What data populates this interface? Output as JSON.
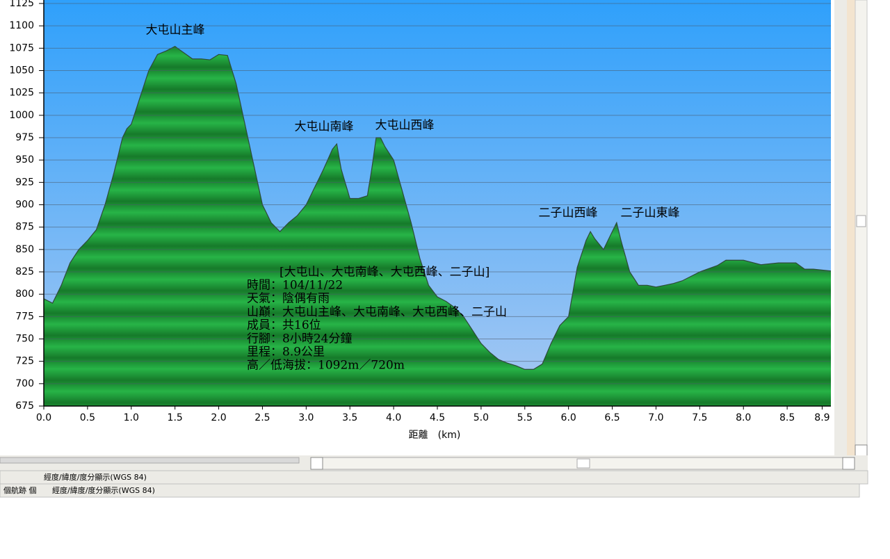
{
  "chart_data": {
    "type": "area",
    "x_label": "距離　(km)",
    "x": [
      0.0,
      0.1,
      0.2,
      0.3,
      0.4,
      0.5,
      0.6,
      0.7,
      0.8,
      0.9,
      0.95,
      1.0,
      1.1,
      1.2,
      1.3,
      1.4,
      1.5,
      1.6,
      1.7,
      1.8,
      1.9,
      2.0,
      2.1,
      2.2,
      2.3,
      2.4,
      2.5,
      2.6,
      2.7,
      2.8,
      2.9,
      3.0,
      3.1,
      3.2,
      3.3,
      3.35,
      3.4,
      3.5,
      3.6,
      3.7,
      3.75,
      3.8,
      3.85,
      3.9,
      4.0,
      4.1,
      4.2,
      4.3,
      4.4,
      4.5,
      4.6,
      4.7,
      4.8,
      4.9,
      5.0,
      5.1,
      5.2,
      5.3,
      5.4,
      5.5,
      5.6,
      5.7,
      5.8,
      5.9,
      6.0,
      6.1,
      6.2,
      6.25,
      6.3,
      6.4,
      6.5,
      6.55,
      6.6,
      6.7,
      6.8,
      6.9,
      7.0,
      7.1,
      7.2,
      7.3,
      7.5,
      7.7,
      7.8,
      8.0,
      8.2,
      8.4,
      8.6,
      8.7,
      8.8,
      9.0
    ],
    "series": [
      {
        "name": "elevation",
        "color": "#1f9e3a",
        "values": [
          795,
          790,
          810,
          835,
          850,
          860,
          872,
          900,
          935,
          975,
          985,
          990,
          1020,
          1050,
          1068,
          1072,
          1077,
          1070,
          1063,
          1063,
          1062,
          1068,
          1067,
          1035,
          990,
          945,
          900,
          880,
          870,
          880,
          888,
          900,
          920,
          940,
          962,
          968,
          940,
          907,
          907,
          910,
          940,
          975,
          975,
          965,
          950,
          915,
          880,
          840,
          810,
          797,
          792,
          785,
          775,
          760,
          745,
          735,
          727,
          723,
          720,
          716,
          716,
          722,
          745,
          765,
          775,
          830,
          860,
          870,
          862,
          850,
          870,
          880,
          860,
          825,
          810,
          810,
          808,
          810,
          812,
          815,
          825,
          832,
          838,
          838,
          833,
          835,
          835,
          828,
          828,
          826
        ]
      }
    ],
    "xlim": [
      0,
      9.0
    ],
    "ylim": [
      675,
      1125
    ],
    "xticks": [
      {
        "value": 0,
        "label": "0.0"
      },
      0.5,
      {
        "value": 1,
        "label": "1.0"
      },
      1.5,
      {
        "value": 2,
        "label": "2.0"
      },
      2.5,
      {
        "value": 3,
        "label": "3.0"
      },
      3.5,
      {
        "value": 4,
        "label": "4.0"
      },
      4.5,
      {
        "value": 5,
        "label": "5.0"
      },
      5.5,
      {
        "value": 6,
        "label": "6.0"
      },
      6.5,
      {
        "value": 7,
        "label": "7.0"
      },
      7.5,
      {
        "value": 8,
        "label": "8.0"
      },
      8.5,
      8.9
    ],
    "yticks": [
      675,
      700,
      725,
      750,
      775,
      800,
      825,
      850,
      875,
      900,
      925,
      950,
      975,
      1000,
      1025,
      1050,
      1075,
      1100,
      1125
    ],
    "grid": true,
    "annotations": [
      "大屯山主峰",
      "大屯山南峰",
      "大屯山西峰",
      "二子山西峰",
      "二子山東峰"
    ],
    "info_title": "[大屯山、大屯南峰、大屯西峰、二子山]",
    "info_lines": [
      "時間：104/11/22",
      "天氣：陰偶有雨",
      "山巔：大屯山主峰、大屯南峰、大屯西峰、二子山",
      "成員：共16位",
      "行腳：8小時24分鐘",
      "里程：8.9公里",
      "高／低海拔：1092m／720m"
    ]
  },
  "status": {
    "row1": "經度/緯度/度分顯示(WGS 84)",
    "row2_left": "個航跡 個",
    "row2_right": "經度/緯度/度分顯示(WGS 84)"
  }
}
